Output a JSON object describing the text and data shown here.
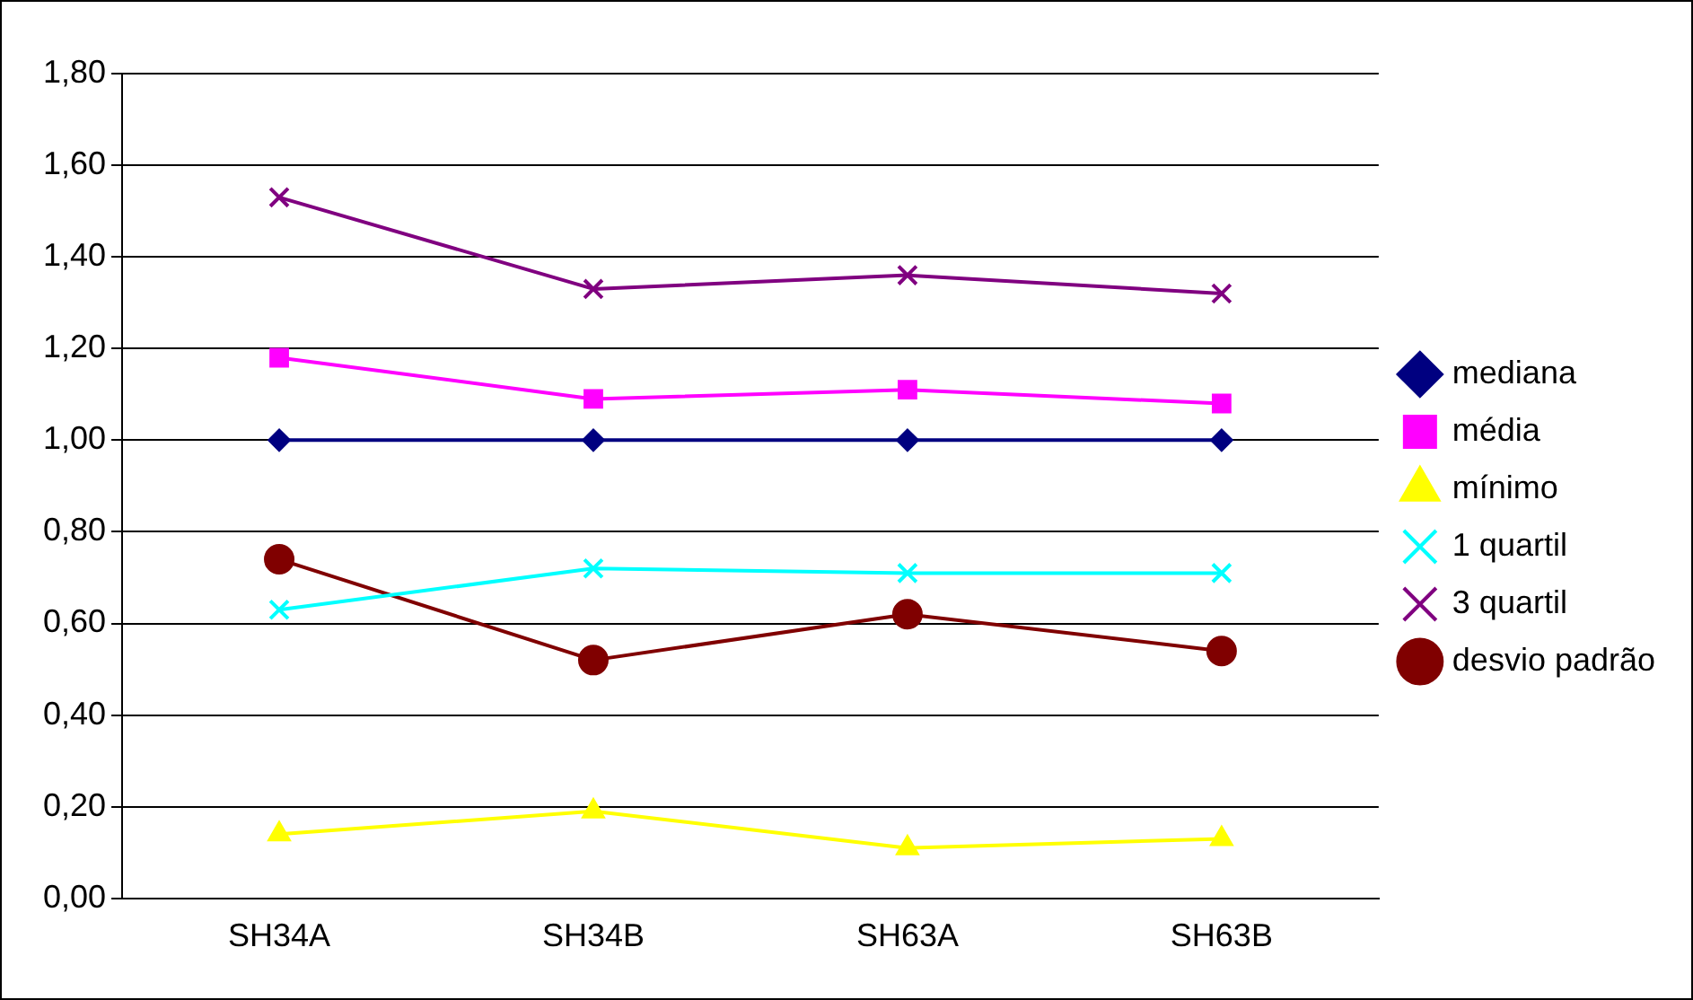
{
  "chart_data": {
    "type": "line",
    "categories": [
      "SH34A",
      "SH34B",
      "SH63A",
      "SH63B"
    ],
    "series": [
      {
        "name": "mediana",
        "color": "#000080",
        "marker": "diamond",
        "values": [
          1.0,
          1.0,
          1.0,
          1.0
        ]
      },
      {
        "name": "média",
        "color": "#ff00ff",
        "marker": "square",
        "values": [
          1.18,
          1.09,
          1.11,
          1.08
        ]
      },
      {
        "name": "mínimo",
        "color": "#ffff00",
        "marker": "triangle",
        "values": [
          0.14,
          0.19,
          0.11,
          0.13
        ]
      },
      {
        "name": "1 quartil",
        "color": "#00ffff",
        "marker": "cross",
        "values": [
          0.63,
          0.72,
          0.71,
          0.71
        ]
      },
      {
        "name": "3 quartil",
        "color": "#800080",
        "marker": "cross",
        "values": [
          1.53,
          1.33,
          1.36,
          1.32
        ]
      },
      {
        "name": "desvio padrão",
        "color": "#800000",
        "marker": "circle",
        "values": [
          0.74,
          0.52,
          0.62,
          0.54
        ]
      }
    ],
    "ylim": [
      0,
      1.8
    ],
    "yticks": [
      {
        "value": 0,
        "label": "0,00"
      },
      {
        "value": 0.2,
        "label": "0,20"
      },
      {
        "value": 0.4,
        "label": "0,40"
      },
      {
        "value": 0.6,
        "label": "0,60"
      },
      {
        "value": 0.8,
        "label": "0,80"
      },
      {
        "value": 1.0,
        "label": "1,00"
      },
      {
        "value": 1.2,
        "label": "1,20"
      },
      {
        "value": 1.4,
        "label": "1,40"
      },
      {
        "value": 1.6,
        "label": "1,60"
      },
      {
        "value": 1.8,
        "label": "1,80"
      }
    ],
    "grid": "y",
    "legend": "right",
    "line_style": "solid"
  }
}
